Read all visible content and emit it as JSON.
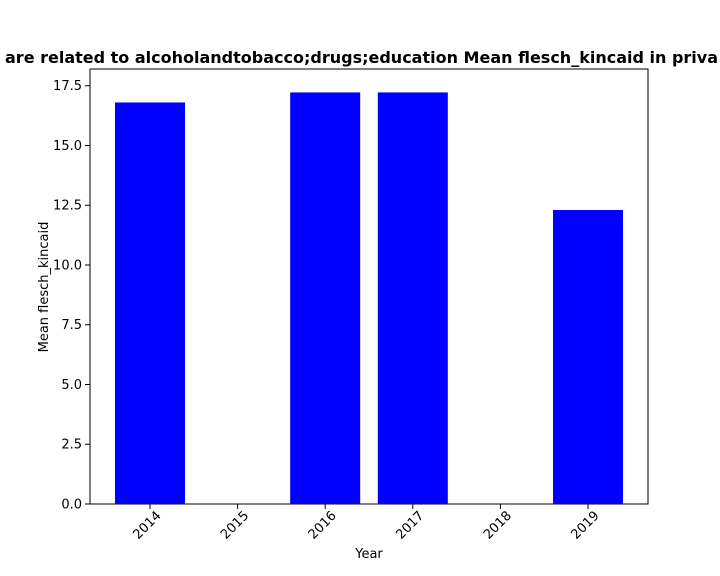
{
  "chart_data": {
    "type": "bar",
    "title": "are related to alcoholandtobacco;drugs;education Mean flesch_kincaid in priva",
    "xlabel": "Year",
    "ylabel": "Mean flesch_kincaid",
    "categories": [
      "2014",
      "2015",
      "2016",
      "2017",
      "2018",
      "2019"
    ],
    "values": [
      16.8,
      0,
      17.22,
      17.22,
      0,
      12.3
    ],
    "ylim": [
      0,
      18.2
    ],
    "yticks": [
      "0.0",
      "2.5",
      "5.0",
      "7.5",
      "10.0",
      "12.5",
      "15.0",
      "17.5"
    ],
    "bar_color": "#0000ff",
    "grid": false,
    "legend": "none"
  }
}
